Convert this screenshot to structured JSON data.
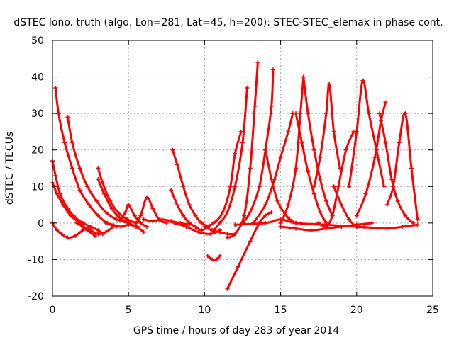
{
  "chart_data": {
    "type": "line",
    "title": "dSTEC Iono. truth (algo, Lon=281, Lat=45, h=200): STEC-STEC_elemax in phase cont.",
    "xlabel": "GPS time / hours of day 283 of year 2014",
    "ylabel": "dSTEC  / TECUs",
    "xlim": [
      0,
      25
    ],
    "ylim": [
      -20,
      50
    ],
    "xticks": [
      0,
      5,
      10,
      15,
      20,
      25
    ],
    "yticks": [
      -20,
      -10,
      0,
      10,
      20,
      30,
      40,
      50
    ],
    "xtick_labels": [
      "0",
      "5",
      "10",
      "15",
      "20",
      "25"
    ],
    "ytick_labels": [
      "-20",
      "-10",
      "0",
      "10",
      "20",
      "30",
      "40",
      "50"
    ],
    "grid": true,
    "marker": "+",
    "color": "#ff0000",
    "series": [
      {
        "x": [
          0.0,
          0.2,
          0.5,
          1.0,
          1.5,
          2.0,
          2.5,
          3.0,
          3.3
        ],
        "y": [
          17,
          13,
          8,
          4,
          1.5,
          0,
          -1,
          -2,
          -3
        ]
      },
      {
        "x": [
          0.0,
          0.3,
          0.7,
          1.2,
          1.8,
          2.3,
          2.8
        ],
        "y": [
          11,
          8,
          5,
          2,
          0,
          -2,
          -3.5
        ]
      },
      {
        "x": [
          0.0,
          0.3,
          0.6,
          1.0,
          1.5,
          2.0,
          2.5
        ],
        "y": [
          0,
          -2,
          -3,
          -4,
          -3.5,
          -2,
          -1
        ]
      },
      {
        "x": [
          0.2,
          0.4,
          0.8,
          1.3,
          1.8,
          2.4,
          3.0,
          3.6,
          4.2
        ],
        "y": [
          37,
          30,
          22,
          15,
          9,
          5,
          2,
          0,
          -1
        ]
      },
      {
        "x": [
          1.0,
          1.3,
          1.8,
          2.3,
          2.9,
          3.5,
          4.2,
          5.0
        ],
        "y": [
          29,
          22,
          15,
          10,
          6,
          3,
          1,
          0
        ]
      },
      {
        "x": [
          1.6,
          2.0,
          2.5,
          3.0,
          3.5,
          4.0
        ],
        "y": [
          0,
          -1,
          -2,
          -3,
          -2.5,
          -1
        ]
      },
      {
        "x": [
          3.0,
          3.3,
          3.8,
          4.3,
          4.9,
          5.5
        ],
        "y": [
          15,
          11,
          6,
          3,
          1,
          0
        ]
      },
      {
        "x": [
          3.0,
          3.4,
          3.9,
          4.4,
          5.0,
          5.6
        ],
        "y": [
          12,
          8,
          4,
          1.5,
          0,
          -1
        ]
      },
      {
        "x": [
          3.5,
          4.0,
          4.5,
          5.0,
          5.5,
          6.0
        ],
        "y": [
          0,
          -0.5,
          -1,
          -0.5,
          -1,
          -2.5
        ]
      },
      {
        "x": [
          4.5,
          4.8,
          5.0,
          5.4,
          5.8,
          6.2
        ],
        "y": [
          1,
          3,
          5,
          2,
          0,
          -1
        ]
      },
      {
        "x": [
          5.5,
          5.8,
          6.2,
          6.6,
          7.0,
          7.5
        ],
        "y": [
          0,
          2,
          7,
          4,
          1,
          0
        ]
      },
      {
        "x": [
          6.0,
          6.6,
          7.2,
          7.8,
          8.4,
          9.0
        ],
        "y": [
          1,
          0.5,
          1,
          0.5,
          0,
          -0.5
        ]
      },
      {
        "x": [
          7.8,
          8.2,
          8.6,
          9.0,
          9.4,
          9.8,
          10.2
        ],
        "y": [
          9,
          5,
          2,
          0,
          -1,
          -2,
          -1
        ]
      },
      {
        "x": [
          7.9,
          8.2,
          8.6,
          9.0,
          9.4,
          9.8,
          10.3
        ],
        "y": [
          20,
          16,
          10,
          5,
          2,
          0,
          -1
        ]
      },
      {
        "x": [
          8.0,
          8.8,
          9.6,
          10.4,
          11.0
        ],
        "y": [
          0,
          -1,
          -2.5,
          -3,
          -2
        ]
      },
      {
        "x": [
          10.2,
          10.5,
          10.8,
          11.0
        ],
        "y": [
          -9,
          -10,
          -10,
          -9
        ]
      },
      {
        "x": [
          10.0,
          10.5,
          11.0,
          11.5,
          12.0
        ],
        "y": [
          -1,
          -2,
          -2.5,
          -3,
          -3
        ]
      },
      {
        "x": [
          10.0,
          10.6,
          11.2,
          11.7,
          12.0,
          12.4
        ],
        "y": [
          -1,
          0,
          3,
          10,
          19,
          25
        ]
      },
      {
        "x": [
          10.6,
          11.0,
          11.5,
          12.0,
          12.5,
          12.8
        ],
        "y": [
          -2,
          0,
          3,
          10,
          22,
          37
        ]
      },
      {
        "x": [
          11.5,
          12.0,
          12.6,
          13.0,
          13.3,
          13.5
        ],
        "y": [
          -4,
          -3,
          2,
          15,
          32,
          44
        ]
      },
      {
        "x": [
          11.5,
          12.2,
          13.0,
          13.6,
          14.0,
          14.4
        ],
        "y": [
          -18,
          -12,
          -5,
          0,
          2,
          3
        ]
      },
      {
        "x": [
          12.5,
          13.0,
          13.6,
          14.0,
          14.4,
          14.5
        ],
        "y": [
          0,
          3,
          10,
          20,
          32,
          42
        ]
      },
      {
        "x": [
          13.2,
          14.0,
          14.6,
          15.0,
          15.5,
          15.8
        ],
        "y": [
          0,
          5,
          12,
          18,
          25,
          30
        ]
      },
      {
        "x": [
          14.0,
          14.4,
          14.8,
          15.2,
          15.6,
          16.0
        ],
        "y": [
          20,
          12,
          6,
          3,
          1,
          0
        ]
      },
      {
        "x": [
          15.0,
          15.5,
          16.0,
          16.3,
          16.5
        ],
        "y": [
          0,
          5,
          15,
          30,
          40
        ]
      },
      {
        "x": [
          16.5,
          16.8,
          17.2,
          17.6,
          18.0,
          18.4
        ],
        "y": [
          40,
          30,
          20,
          12,
          6,
          2
        ]
      },
      {
        "x": [
          16.0,
          16.4,
          16.8,
          17.2,
          17.6,
          18.0
        ],
        "y": [
          30,
          22,
          14,
          8,
          3,
          0
        ]
      },
      {
        "x": [
          17.2,
          17.6,
          18.0,
          18.2,
          18.5,
          18.9
        ],
        "y": [
          10,
          18,
          30,
          38,
          25,
          15
        ]
      },
      {
        "x": [
          17.5,
          18.0,
          18.4,
          18.8,
          19.3,
          19.8
        ],
        "y": [
          0,
          -1,
          2,
          10,
          20,
          25
        ]
      },
      {
        "x": [
          18.5,
          19.0,
          19.5,
          20.0,
          20.5
        ],
        "y": [
          10,
          5,
          1,
          -1,
          -1
        ]
      },
      {
        "x": [
          19.5,
          20.0,
          20.4,
          20.8,
          21.3,
          21.8
        ],
        "y": [
          10,
          25,
          39,
          30,
          20,
          10
        ]
      },
      {
        "x": [
          20.0,
          20.6,
          21.2,
          21.6,
          21.9
        ],
        "y": [
          2,
          8,
          18,
          28,
          33
        ]
      },
      {
        "x": [
          21.5,
          21.9,
          22.3,
          22.7,
          23.2,
          23.7
        ],
        "y": [
          30,
          22,
          12,
          6,
          2,
          0
        ]
      },
      {
        "x": [
          22.0,
          22.4,
          22.8,
          23.2,
          23.6,
          24.0
        ],
        "y": [
          5,
          10,
          22,
          30,
          15,
          1
        ]
      },
      {
        "x": [
          12.0,
          14.0,
          15.0,
          16.0,
          18.0,
          20.0,
          22.0,
          23.0,
          24.0
        ],
        "y": [
          -0.5,
          0,
          1,
          0,
          -0.5,
          -1,
          -1.5,
          -1,
          -0.5
        ]
      },
      {
        "x": [
          15.0,
          16.0,
          17.0,
          18.0,
          19.0,
          20.0,
          21.0
        ],
        "y": [
          -1,
          -1.5,
          -2,
          -1.5,
          -1,
          -0.5,
          0
        ]
      }
    ]
  }
}
